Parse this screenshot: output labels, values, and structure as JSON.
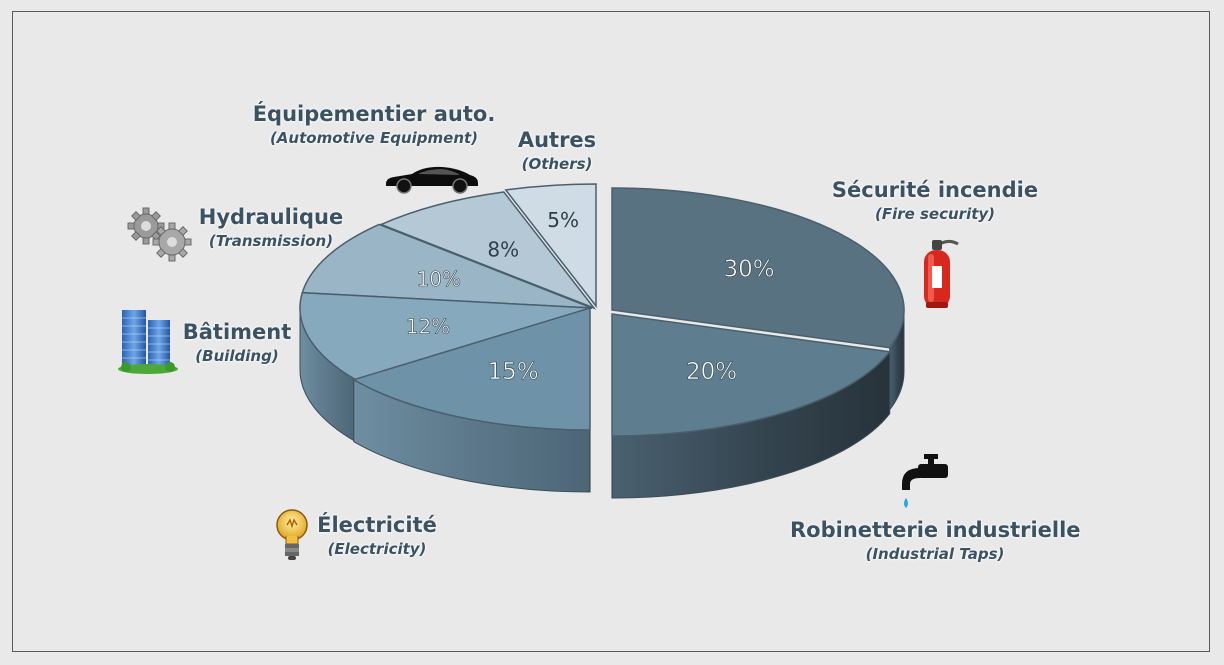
{
  "chart_data": {
    "type": "pie",
    "style": "3d-exploded",
    "slices": [
      {
        "label": "Sécurité incendie",
        "label_en": "(Fire security)",
        "value": 30,
        "value_label": "30%",
        "color": "#587282",
        "icon": "fire-extinguisher-icon"
      },
      {
        "label": "Robinetterie industrielle",
        "label_en": "(Industrial Taps)",
        "value": 20,
        "value_label": "20%",
        "color": "#5e7d8e",
        "icon": "water-tap-icon"
      },
      {
        "label": "Électricité",
        "label_en": "(Electricity)",
        "value": 15,
        "value_label": "15%",
        "color": "#6e93a8",
        "icon": "light-bulb-icon"
      },
      {
        "label": "Bâtiment",
        "label_en": "(Building)",
        "value": 12,
        "value_label": "12%",
        "color": "#86a9be",
        "icon": "building-icon"
      },
      {
        "label": "Hydraulique",
        "label_en": "(Transmission)",
        "value": 10,
        "value_label": "10%",
        "color": "#9ab5c6",
        "icon": "gears-icon"
      },
      {
        "label": "Équipementier auto.",
        "label_en": "(Automotive Equipment)",
        "value": 8,
        "value_label": "8%",
        "color": "#b4c8d5",
        "icon": "car-icon"
      },
      {
        "label": "Autres",
        "label_en": "(Others)",
        "value": 5,
        "value_label": "5%",
        "color": "#d0dce5",
        "icon": ""
      }
    ]
  }
}
